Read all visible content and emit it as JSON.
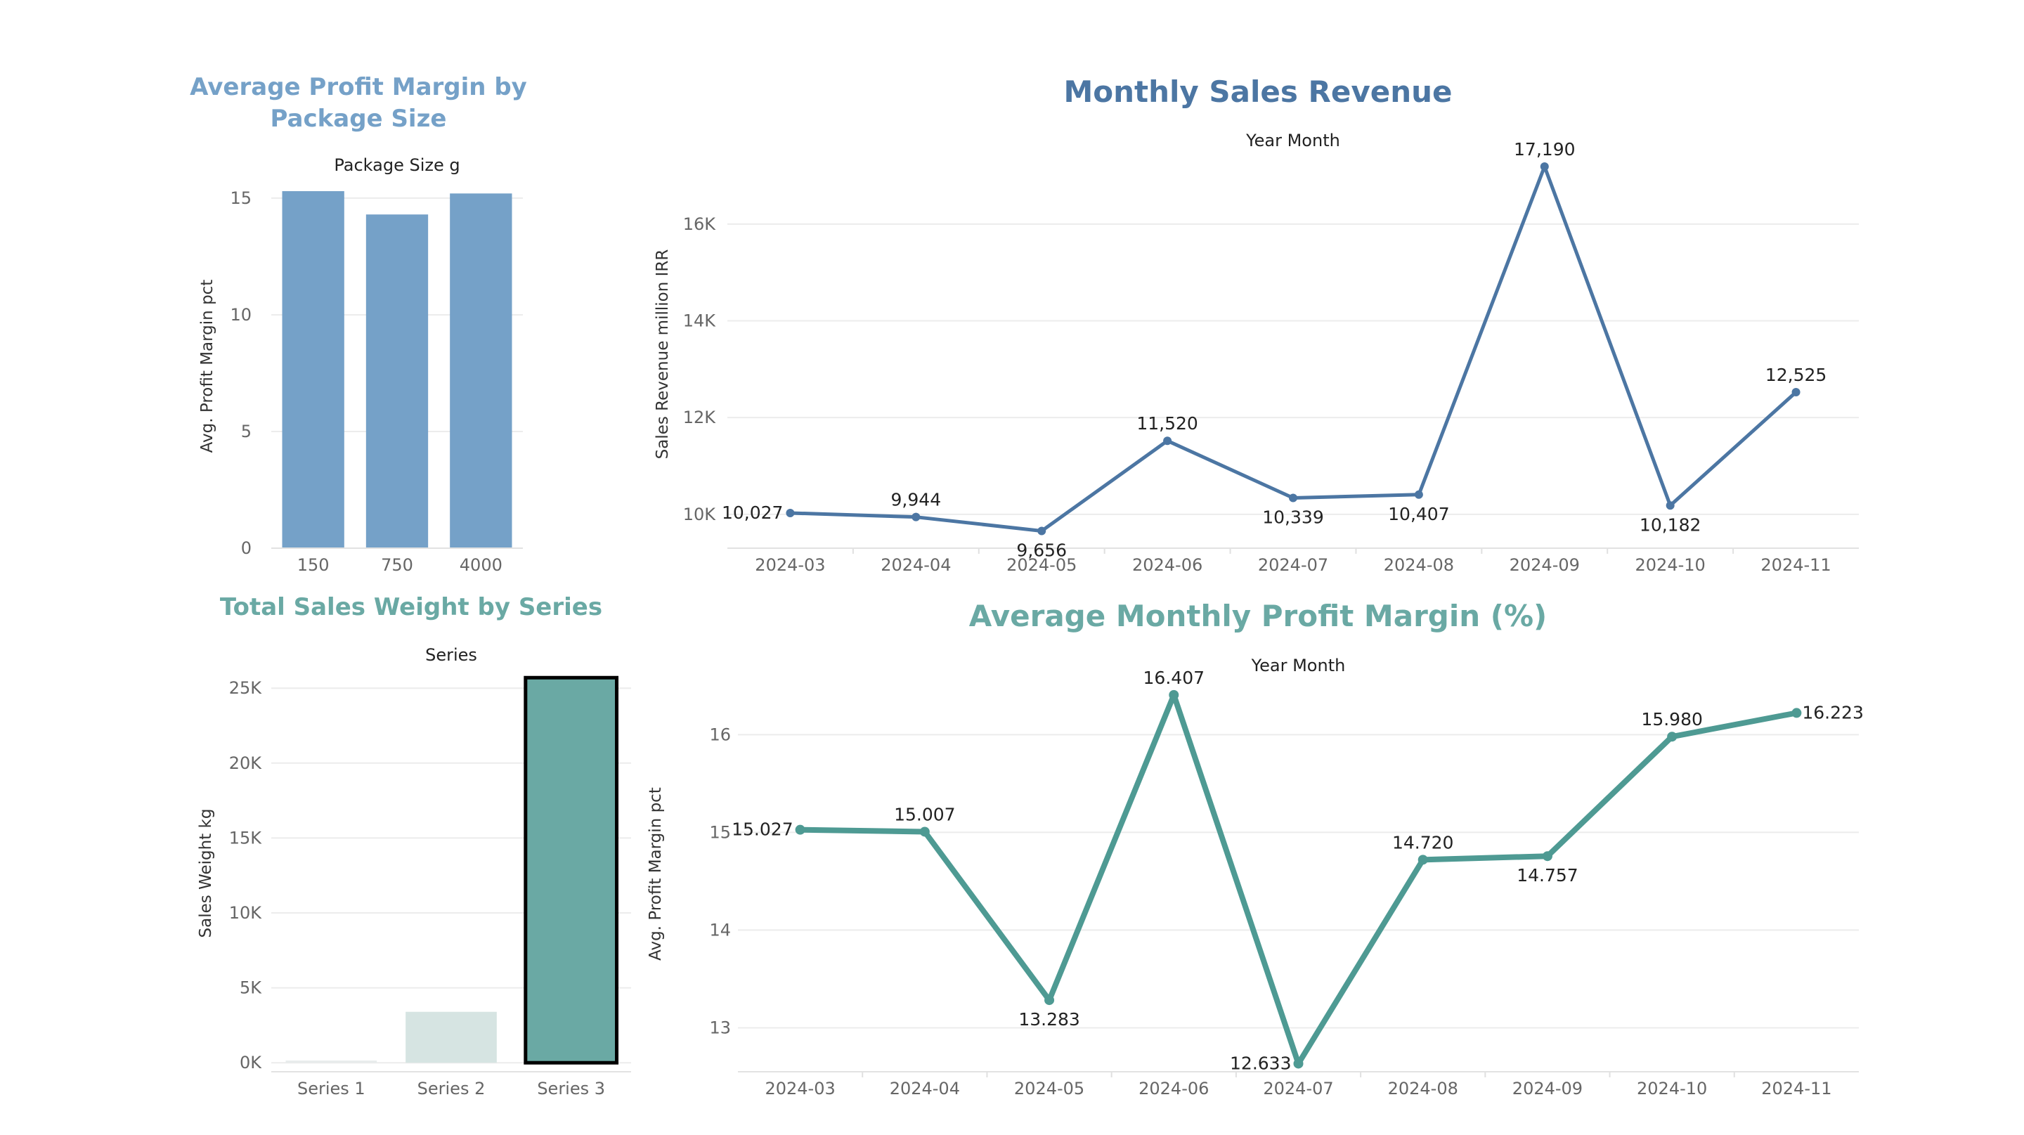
{
  "colors": {
    "blue": "#4c76a3",
    "lightblue": "#75a1c8",
    "teal": "#4e9a93",
    "tealtitle": "#6aa9a4",
    "series2": "#d6e4e2",
    "series1": "#e8ecec"
  },
  "chart_data": [
    {
      "id": "package",
      "type": "bar",
      "title": "Average Profit Margin by Package Size",
      "column_header": "Package Size g",
      "xlabel": "",
      "ylabel": "Avg. Profit Margin pct",
      "categories": [
        "150",
        "750",
        "4000"
      ],
      "values": [
        15.3,
        14.3,
        15.2
      ],
      "ylim": [
        0,
        15.6
      ],
      "yticks": [
        0,
        5,
        10,
        15
      ],
      "ytick_labels": [
        "0",
        "5",
        "10",
        "15"
      ],
      "grid": true,
      "legend": "none"
    },
    {
      "id": "revenue",
      "type": "line",
      "title": "Monthly Sales Revenue",
      "column_header": "Year Month",
      "xlabel": "",
      "ylabel": "Sales Revenue million IRR",
      "x": [
        "2024-03",
        "2024-04",
        "2024-05",
        "2024-06",
        "2024-07",
        "2024-08",
        "2024-09",
        "2024-10",
        "2024-11"
      ],
      "values": [
        10027,
        9944,
        9656,
        11520,
        10339,
        10407,
        17190,
        10182,
        12525
      ],
      "labels": [
        "10,027",
        "9,944",
        "9,656",
        "11,520",
        "10,339",
        "10,407",
        "17,190",
        "10,182",
        "12,525"
      ],
      "label_pos": [
        "left",
        "above",
        "below",
        "above",
        "below",
        "below",
        "above",
        "below",
        "above"
      ],
      "ylim": [
        9300,
        17320
      ],
      "yticks": [
        10000,
        12000,
        14000,
        16000
      ],
      "ytick_labels": [
        "10K",
        "12K",
        "14K",
        "16K"
      ],
      "grid": true,
      "legend": "none"
    },
    {
      "id": "series",
      "type": "bar",
      "title": "Total Sales Weight by Series",
      "column_header": "Series",
      "xlabel": "",
      "ylabel": "Sales Weight kg",
      "categories": [
        "Series 1",
        "Series 2",
        "Series 3"
      ],
      "values": [
        150,
        3400,
        25700
      ],
      "highlighted": "Series 3",
      "ylim": [
        -600,
        25900
      ],
      "yticks": [
        0,
        5000,
        10000,
        15000,
        20000,
        25000
      ],
      "ytick_labels": [
        "0K",
        "5K",
        "10K",
        "15K",
        "20K",
        "25K"
      ],
      "grid": true,
      "legend": "none"
    },
    {
      "id": "margin",
      "type": "line",
      "title": "Average Monthly Profit Margin (%)",
      "column_header": "Year Month",
      "xlabel": "",
      "ylabel": "Avg. Profit Margin pct",
      "x": [
        "2024-03",
        "2024-04",
        "2024-05",
        "2024-06",
        "2024-07",
        "2024-08",
        "2024-09",
        "2024-10",
        "2024-11"
      ],
      "values": [
        15.027,
        15.007,
        13.283,
        16.407,
        12.633,
        14.72,
        14.757,
        15.98,
        16.223
      ],
      "labels": [
        "15.027",
        "15.007",
        "13.283",
        "16.407",
        "12.633",
        "14.720",
        "14.757",
        "15.980",
        "16.223"
      ],
      "label_pos": [
        "left",
        "above",
        "below",
        "above",
        "left",
        "above",
        "below",
        "above",
        "right"
      ],
      "ylim": [
        12.55,
        16.6
      ],
      "yticks": [
        13,
        14,
        15,
        16
      ],
      "ytick_labels": [
        "13",
        "14",
        "15",
        "16"
      ],
      "grid": true,
      "legend": "none"
    }
  ]
}
